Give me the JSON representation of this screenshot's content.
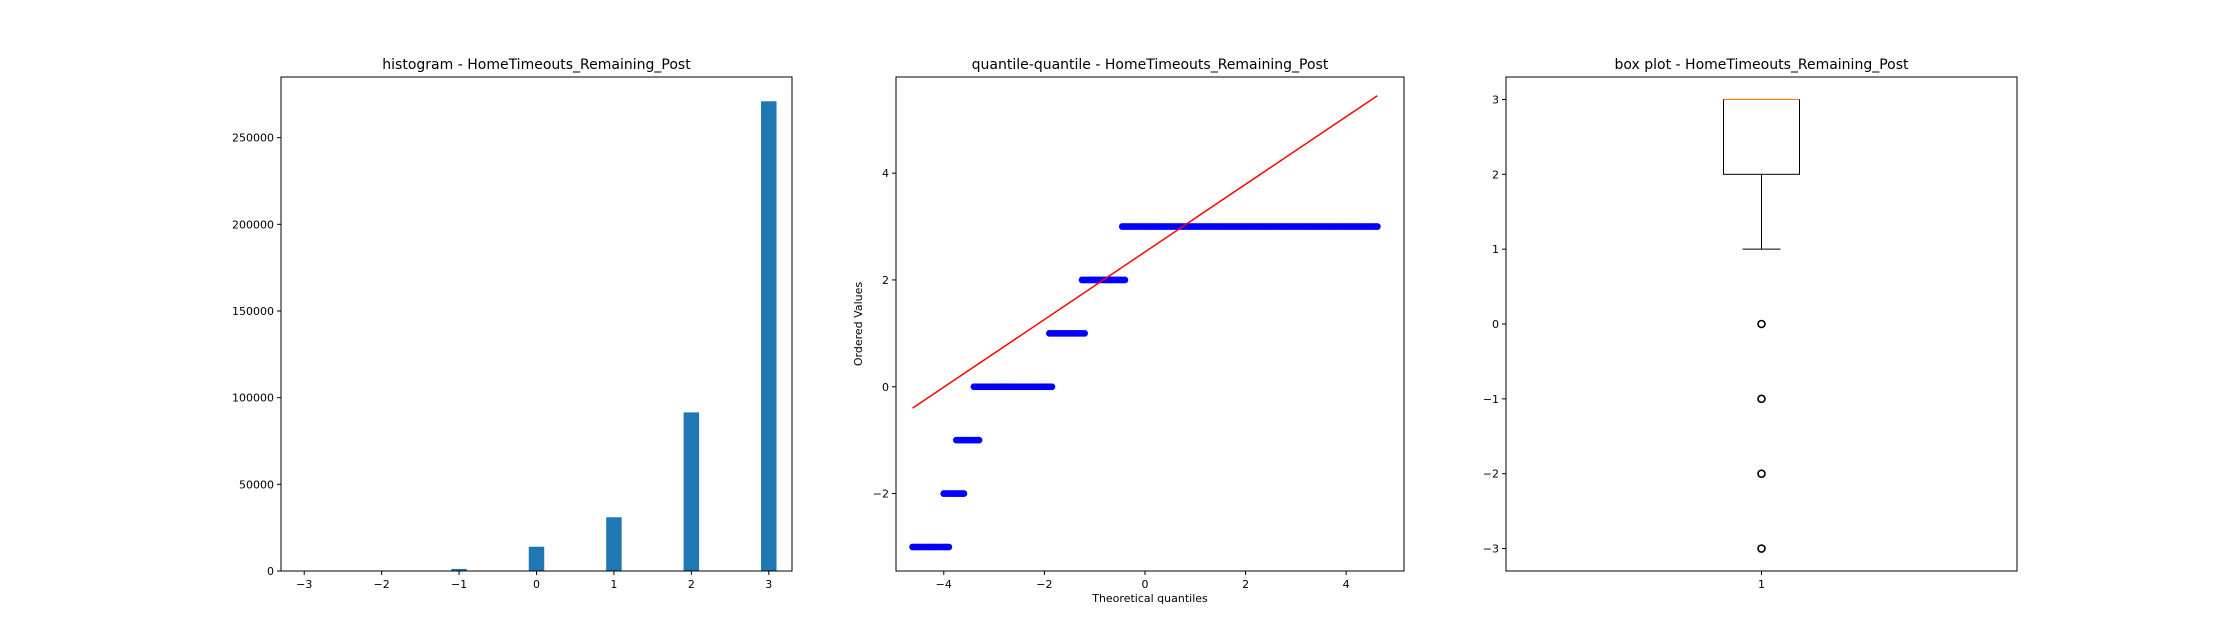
{
  "chart_data": [
    {
      "type": "bar",
      "title": "histogram - HomeTimeouts_Remaining_Post",
      "xlabel": "",
      "ylabel": "",
      "xlim": [
        -3.3,
        3.3
      ],
      "ylim": [
        0,
        285000
      ],
      "xticks": [
        -3,
        -2,
        -1,
        0,
        1,
        2,
        3
      ],
      "yticks": [
        0,
        50000,
        100000,
        150000,
        200000,
        250000
      ],
      "bar_width": 0.2,
      "color": "#1f77b4",
      "bins": [
        {
          "x": -3.0,
          "value": 40
        },
        {
          "x": -2.0,
          "value": 150
        },
        {
          "x": -1.0,
          "value": 1200
        },
        {
          "x": 0.0,
          "value": 14000
        },
        {
          "x": 1.0,
          "value": 31000
        },
        {
          "x": 2.0,
          "value": 91500
        },
        {
          "x": 3.0,
          "value": 271000
        }
      ]
    },
    {
      "type": "scatter",
      "title": "quantile-quantile - HomeTimeouts_Remaining_Post",
      "xlabel": "Theoretical quantiles",
      "ylabel": "Ordered Values",
      "xlim": [
        -4.95,
        5.15
      ],
      "ylim": [
        -3.45,
        5.8
      ],
      "xticks": [
        -4,
        -2,
        0,
        2,
        4
      ],
      "yticks": [
        -2,
        0,
        2,
        4
      ],
      "point_color": "#0000ff",
      "line_color": "#ff0000",
      "fit_line": [
        [
          -4.62,
          -0.4
        ],
        [
          4.62,
          5.45
        ]
      ],
      "segments": [
        {
          "x0": -4.62,
          "x1": -3.9,
          "y": -3
        },
        {
          "x0": -4.0,
          "x1": -3.6,
          "y": -2
        },
        {
          "x0": -3.75,
          "x1": -3.3,
          "y": -1
        },
        {
          "x0": -3.4,
          "x1": -1.85,
          "y": 0
        },
        {
          "x0": -1.9,
          "x1": -1.2,
          "y": 1
        },
        {
          "x0": -1.25,
          "x1": -0.4,
          "y": 2
        },
        {
          "x0": -0.45,
          "x1": 4.62,
          "y": 3
        }
      ]
    },
    {
      "type": "box",
      "title": "box plot - HomeTimeouts_Remaining_Post",
      "xlabel": "",
      "ylabel": "",
      "xlim": [
        0.5,
        1.5
      ],
      "ylim": [
        -3.3,
        3.3
      ],
      "xticks": [
        1
      ],
      "yticks": [
        -3,
        -2,
        -1,
        0,
        1,
        2,
        3
      ],
      "median": 3,
      "q1": 2,
      "q3": 3,
      "whisker_low": 1,
      "whisker_high": 3,
      "outliers": [
        0,
        -1,
        -2,
        -3
      ],
      "median_color": "#ff7f0e"
    }
  ]
}
